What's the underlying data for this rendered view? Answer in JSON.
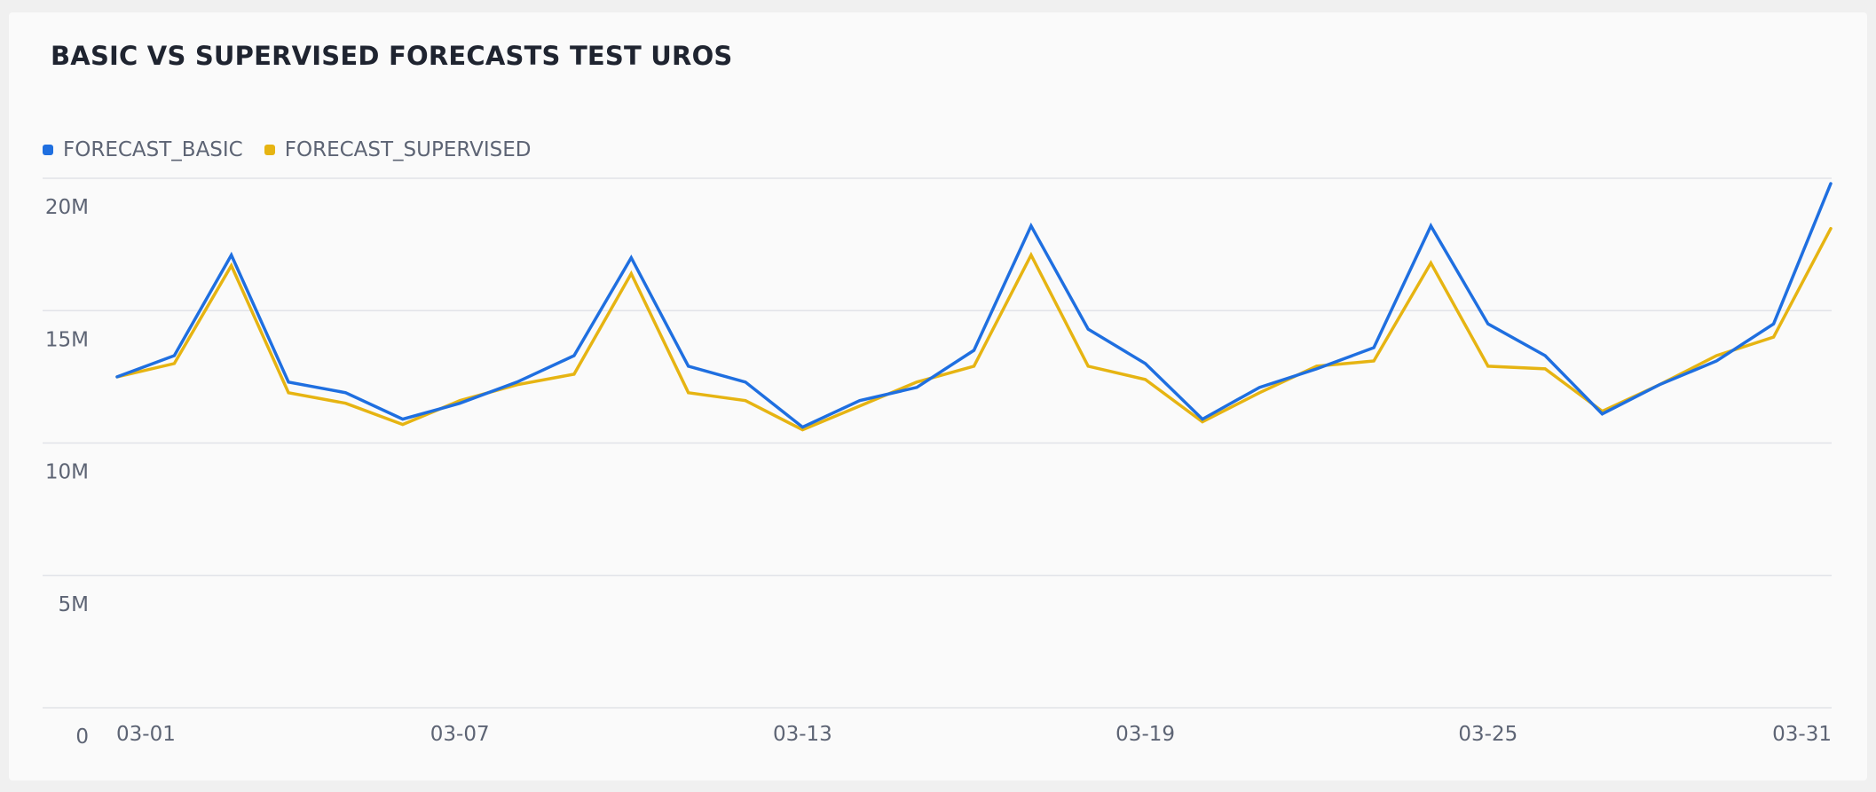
{
  "chart_data": {
    "type": "line",
    "title": "BASIC VS SUPERVISED FORECASTS TEST UROS",
    "xlabel": "",
    "ylabel": "",
    "x": [
      "03-01",
      "03-02",
      "03-03",
      "03-04",
      "03-05",
      "03-06",
      "03-07",
      "03-08",
      "03-09",
      "03-10",
      "03-11",
      "03-12",
      "03-13",
      "03-14",
      "03-15",
      "03-16",
      "03-17",
      "03-18",
      "03-19",
      "03-20",
      "03-21",
      "03-22",
      "03-23",
      "03-24",
      "03-25",
      "03-26",
      "03-27",
      "03-28",
      "03-29",
      "03-30",
      "03-31"
    ],
    "x_tick_labels": [
      "03-01",
      "03-07",
      "03-13",
      "03-19",
      "03-25",
      "03-31"
    ],
    "y_ticks": [
      {
        "value": 0,
        "label": "0"
      },
      {
        "value": 5000000,
        "label": "5M"
      },
      {
        "value": 10000000,
        "label": "10M"
      },
      {
        "value": 15000000,
        "label": "15M"
      },
      {
        "value": 20000000,
        "label": "20M"
      }
    ],
    "ylim": [
      0,
      20000000
    ],
    "grid": true,
    "legend_position": "top-left",
    "series": [
      {
        "name": "FORECAST_BASIC",
        "color": "#1f6fe0",
        "values": [
          12500000,
          13300000,
          17100000,
          12300000,
          11900000,
          10900000,
          11500000,
          12300000,
          13300000,
          17000000,
          12900000,
          12300000,
          10600000,
          11600000,
          12100000,
          13500000,
          18200000,
          14300000,
          13000000,
          10900000,
          12100000,
          12800000,
          13600000,
          18200000,
          14500000,
          13300000,
          11100000,
          12200000,
          13100000,
          14500000,
          19800000
        ]
      },
      {
        "name": "FORECAST_SUPERVISED",
        "color": "#e6b412",
        "values": [
          12500000,
          13000000,
          16700000,
          11900000,
          11500000,
          10700000,
          11600000,
          12200000,
          12600000,
          16400000,
          11900000,
          11600000,
          10500000,
          11400000,
          12300000,
          12900000,
          17100000,
          12900000,
          12400000,
          10800000,
          11900000,
          12900000,
          13100000,
          16800000,
          12900000,
          12800000,
          11200000,
          12200000,
          13300000,
          14000000,
          18100000
        ]
      }
    ]
  }
}
